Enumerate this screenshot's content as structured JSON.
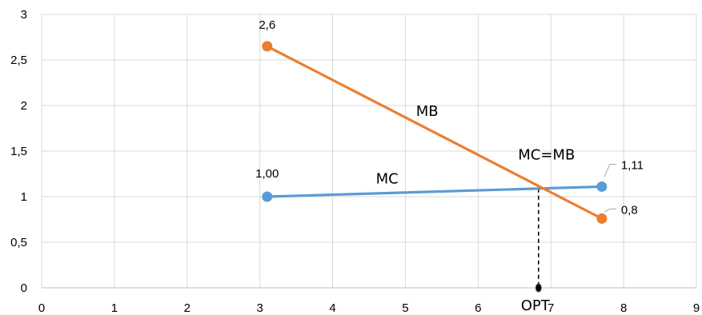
{
  "chart_data": {
    "type": "line",
    "title": "",
    "xlabel": "",
    "ylabel": "",
    "xlim": [
      0,
      9
    ],
    "ylim": [
      0,
      3
    ],
    "x_ticks": [
      "0",
      "1",
      "2",
      "3",
      "4",
      "5",
      "6",
      "7",
      "8",
      "9"
    ],
    "y_ticks": [
      "0",
      "0,5",
      "1",
      "1,5",
      "2",
      "2,5",
      "3"
    ],
    "grid": true,
    "series": [
      {
        "name": "MC",
        "color": "#5b9bd5",
        "points": [
          {
            "x": 3.1,
            "y": 1.0,
            "label": "1,00"
          },
          {
            "x": 7.7,
            "y": 1.11,
            "label": "1,11"
          }
        ]
      },
      {
        "name": "MB",
        "color": "#ed7d31",
        "points": [
          {
            "x": 3.1,
            "y": 2.65,
            "label": "2,6"
          },
          {
            "x": 7.7,
            "y": 0.76,
            "label": "0,8"
          }
        ]
      }
    ],
    "annotations": {
      "intersection_label": "MC=MB",
      "optimum_label": "OPT",
      "optimum_x": 6.83,
      "optimum_y": 1.09
    }
  }
}
